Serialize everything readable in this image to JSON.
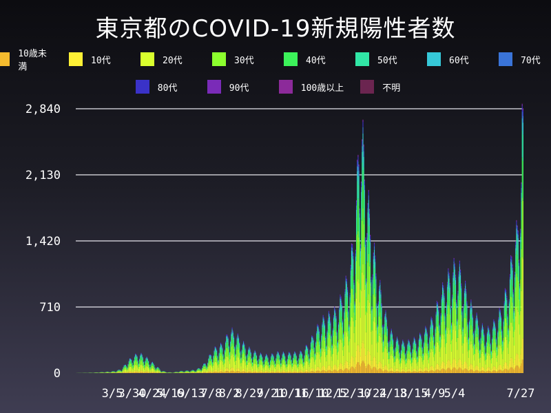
{
  "chart_data": {
    "type": "bar",
    "stacked": true,
    "title": "東京都のCOVID-19新規陽性者数",
    "xlabel": "",
    "ylabel": "",
    "ylim": [
      0,
      2840
    ],
    "y_ticks": [
      0,
      710,
      1420,
      2130,
      2840
    ],
    "y_tick_labels": [
      "0",
      "710",
      "1,420",
      "2,130",
      "2,840"
    ],
    "x_tick_labels": [
      "3/5",
      "3/30",
      "4/24",
      "5/19",
      "6/13",
      "7/8",
      "8/2",
      "8/27",
      "9/21",
      "10/16",
      "11/10",
      "12/5",
      "12/30",
      "1/24",
      "2/18",
      "3/15",
      "4/9",
      "5/4",
      "7/27"
    ],
    "grid": true,
    "legend_position": "top",
    "legend": [
      "10歳未満",
      "10代",
      "20代",
      "30代",
      "40代",
      "50代",
      "60代",
      "70代",
      "80代",
      "90代",
      "100歳以上",
      "不明"
    ],
    "series_colors": [
      "#f4bb2e",
      "#fdf035",
      "#d9ff2e",
      "#8cff2e",
      "#3cf25a",
      "#31e6a6",
      "#36c8d8",
      "#3a74d8",
      "#3a32c8",
      "#7a2bb8",
      "#8c2a9a",
      "#6b2550"
    ],
    "series_shares": [
      0.05,
      0.08,
      0.3,
      0.22,
      0.15,
      0.1,
      0.045,
      0.025,
      0.02,
      0.008,
      0.001,
      0.001
    ],
    "weekly_totals": [
      [
        "2020-01-24",
        1
      ],
      [
        "2020-02-14",
        5
      ],
      [
        "2020-02-28",
        12
      ],
      [
        "2020-03-06",
        15
      ],
      [
        "2020-03-13",
        22
      ],
      [
        "2020-03-20",
        40
      ],
      [
        "2020-03-27",
        110
      ],
      [
        "2020-04-03",
        160
      ],
      [
        "2020-04-10",
        190
      ],
      [
        "2020-04-17",
        165
      ],
      [
        "2020-04-24",
        120
      ],
      [
        "2020-05-01",
        75
      ],
      [
        "2020-05-08",
        25
      ],
      [
        "2020-05-15",
        10
      ],
      [
        "2020-05-22",
        6
      ],
      [
        "2020-05-29",
        18
      ],
      [
        "2020-06-05",
        22
      ],
      [
        "2020-06-12",
        26
      ],
      [
        "2020-06-19",
        32
      ],
      [
        "2020-06-26",
        58
      ],
      [
        "2020-07-03",
        120
      ],
      [
        "2020-07-10",
        220
      ],
      [
        "2020-07-17",
        260
      ],
      [
        "2020-07-24",
        280
      ],
      [
        "2020-07-31",
        420
      ],
      [
        "2020-08-07",
        380
      ],
      [
        "2020-08-14",
        310
      ],
      [
        "2020-08-21",
        250
      ],
      [
        "2020-08-28",
        215
      ],
      [
        "2020-09-04",
        185
      ],
      [
        "2020-09-11",
        175
      ],
      [
        "2020-09-18",
        165
      ],
      [
        "2020-09-25",
        190
      ],
      [
        "2020-10-02",
        200
      ],
      [
        "2020-10-09",
        180
      ],
      [
        "2020-10-16",
        200
      ],
      [
        "2020-10-23",
        185
      ],
      [
        "2020-10-30",
        220
      ],
      [
        "2020-11-06",
        290
      ],
      [
        "2020-11-13",
        390
      ],
      [
        "2020-11-20",
        490
      ],
      [
        "2020-11-27",
        540
      ],
      [
        "2020-12-04",
        560
      ],
      [
        "2020-12-11",
        620
      ],
      [
        "2020-12-18",
        790
      ],
      [
        "2020-12-25",
        950
      ],
      [
        "2021-01-01",
        1400
      ],
      [
        "2021-01-08",
        2520
      ],
      [
        "2021-01-15",
        1850
      ],
      [
        "2021-01-22",
        1300
      ],
      [
        "2021-01-29",
        950
      ],
      [
        "2021-02-05",
        650
      ],
      [
        "2021-02-12",
        430
      ],
      [
        "2021-02-19",
        340
      ],
      [
        "2021-02-26",
        300
      ],
      [
        "2021-03-05",
        290
      ],
      [
        "2021-03-12",
        310
      ],
      [
        "2021-03-19",
        330
      ],
      [
        "2021-03-26",
        390
      ],
      [
        "2021-04-02",
        450
      ],
      [
        "2021-04-09",
        560
      ],
      [
        "2021-04-16",
        740
      ],
      [
        "2021-04-23",
        880
      ],
      [
        "2021-04-30",
        980
      ],
      [
        "2021-05-07",
        1060
      ],
      [
        "2021-05-14",
        900
      ],
      [
        "2021-05-21",
        700
      ],
      [
        "2021-05-28",
        580
      ],
      [
        "2021-06-04",
        470
      ],
      [
        "2021-06-11",
        400
      ],
      [
        "2021-06-18",
        440
      ],
      [
        "2021-06-25",
        520
      ],
      [
        "2021-07-02",
        650
      ],
      [
        "2021-07-09",
        880
      ],
      [
        "2021-07-16",
        1250
      ],
      [
        "2021-07-20",
        1380
      ],
      [
        "2021-07-23",
        1750
      ],
      [
        "2021-07-25",
        1900
      ],
      [
        "2021-07-27",
        2848
      ]
    ]
  }
}
